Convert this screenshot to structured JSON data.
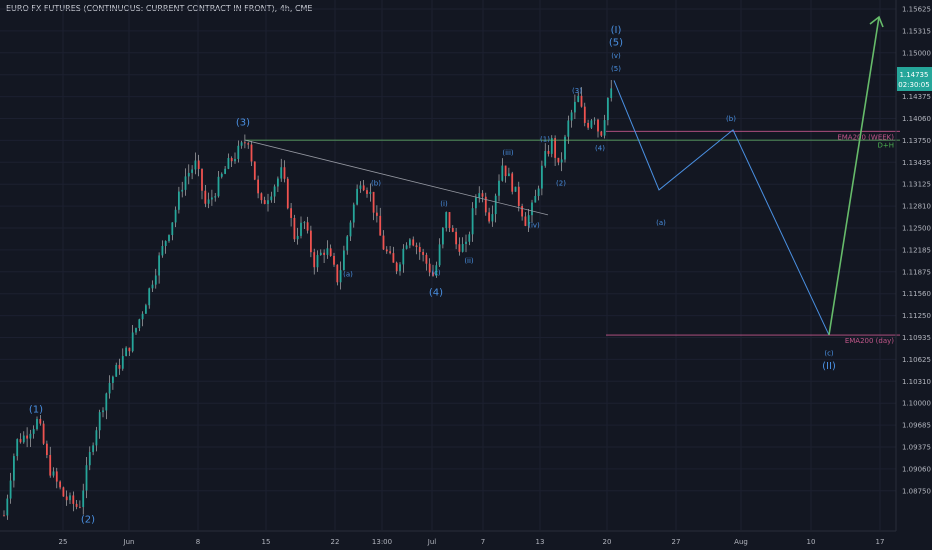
{
  "chart_data": {
    "type": "candlestick",
    "title": "EURO FX FUTURES (CONTINUOUS: CURRENT CONTRACT IN FRONT), 4h, CME",
    "y_ticks": [
      "1.15625",
      "1.15315",
      "1.15000",
      "1.14690",
      "1.14375",
      "1.14060",
      "1.13750",
      "1.13435",
      "1.13125",
      "1.12810",
      "1.12500",
      "1.12185",
      "1.11875",
      "1.11560",
      "1.11250",
      "1.10935",
      "1.10625",
      "1.10310",
      "1.10000",
      "1.09685",
      "1.09375",
      "1.09060",
      "1.08750"
    ],
    "x_ticks": [
      "25",
      "Jun",
      "8",
      "15",
      "22",
      "13:00",
      "Jul",
      "7",
      "13",
      "20",
      "27",
      "Aug",
      "10",
      "17"
    ],
    "price_label": "1.14735",
    "countdown_label": "02:30:05",
    "ylim": [
      1.086,
      1.1575
    ],
    "swing_points": [
      {
        "i": 0,
        "p": 1.088
      },
      {
        "i": 12,
        "p": 1.098
      },
      {
        "i": 20,
        "p": 1.0988
      },
      {
        "i": 34,
        "p": 1.101
      },
      {
        "i": 45,
        "p": 1.0945
      },
      {
        "i": 60,
        "p": 1.0905
      },
      {
        "i": 75,
        "p": 1.089
      },
      {
        "i": 90,
        "p": 1.099
      },
      {
        "i": 105,
        "p": 1.106
      },
      {
        "i": 125,
        "p": 1.111
      },
      {
        "i": 140,
        "p": 1.1165
      },
      {
        "i": 155,
        "p": 1.123
      },
      {
        "i": 170,
        "p": 1.129
      },
      {
        "i": 180,
        "p": 1.134
      },
      {
        "i": 192,
        "p": 1.136
      },
      {
        "i": 202,
        "p": 1.13
      },
      {
        "i": 210,
        "p": 1.132
      },
      {
        "i": 222,
        "p": 1.1355
      },
      {
        "i": 236,
        "p": 1.138
      },
      {
        "i": 244,
        "p": 1.1395
      },
      {
        "i": 256,
        "p": 1.13
      },
      {
        "i": 268,
        "p": 1.1325
      },
      {
        "i": 278,
        "p": 1.135
      },
      {
        "i": 290,
        "p": 1.126
      },
      {
        "i": 300,
        "p": 1.128
      },
      {
        "i": 310,
        "p": 1.1225
      },
      {
        "i": 322,
        "p": 1.1245
      },
      {
        "i": 334,
        "p": 1.12
      },
      {
        "i": 346,
        "p": 1.128
      },
      {
        "i": 356,
        "p": 1.134
      },
      {
        "i": 366,
        "p": 1.132
      },
      {
        "i": 378,
        "p": 1.125
      },
      {
        "i": 392,
        "p": 1.1215
      },
      {
        "i": 405,
        "p": 1.1265
      },
      {
        "i": 418,
        "p": 1.1235
      },
      {
        "i": 430,
        "p": 1.1205
      },
      {
        "i": 442,
        "p": 1.129
      },
      {
        "i": 452,
        "p": 1.125
      },
      {
        "i": 462,
        "p": 1.1245
      },
      {
        "i": 474,
        "p": 1.133
      },
      {
        "i": 486,
        "p": 1.1285
      },
      {
        "i": 498,
        "p": 1.136
      },
      {
        "i": 510,
        "p": 1.1325
      },
      {
        "i": 522,
        "p": 1.128
      },
      {
        "i": 530,
        "p": 1.1305
      },
      {
        "i": 540,
        "p": 1.1365
      },
      {
        "i": 548,
        "p": 1.139
      },
      {
        "i": 555,
        "p": 1.135
      },
      {
        "i": 565,
        "p": 1.142
      },
      {
        "i": 574,
        "p": 1.145
      },
      {
        "i": 582,
        "p": 1.141
      },
      {
        "i": 590,
        "p": 1.143
      },
      {
        "i": 596,
        "p": 1.1395
      },
      {
        "i": 604,
        "p": 1.145
      },
      {
        "i": 614,
        "p": 1.147
      }
    ],
    "lines": {
      "horizontal_green": {
        "p": 1.1392,
        "x_start": 245,
        "x_end": 900
      },
      "descending_trendline": [
        {
          "x": 245,
          "p": 1.1392
        },
        {
          "x": 548,
          "p": 1.129
        }
      ],
      "ema200_week": {
        "p": 1.1404,
        "x_start": 606,
        "x_end": 900,
        "label": "EMA200 (WEEK)",
        "label2": "D+H"
      },
      "ema200_day": {
        "p": 1.1126,
        "x_start": 606,
        "x_end": 900,
        "label": "EMA200 (day)"
      }
    },
    "projection_blue": [
      {
        "x": 614,
        "p": 1.14735
      },
      {
        "x": 659,
        "p": 1.1324
      },
      {
        "x": 733,
        "p": 1.1406
      },
      {
        "x": 829,
        "p": 1.1126
      }
    ],
    "projection_green": [
      {
        "x": 829,
        "p": 1.1126
      },
      {
        "x": 879,
        "p": 1.156
      }
    ],
    "wave_labels": [
      {
        "t": "(1)",
        "x": 36,
        "p": 1.102,
        "size": "lg"
      },
      {
        "t": "(2)",
        "x": 88,
        "p": 1.087,
        "size": "lg"
      },
      {
        "t": "(3)",
        "x": 243,
        "p": 1.1412,
        "size": "lg"
      },
      {
        "t": "(a)",
        "x": 348,
        "p": 1.1206,
        "size": "sm"
      },
      {
        "t": "(b)",
        "x": 376,
        "p": 1.133,
        "size": "sm"
      },
      {
        "t": "(c)",
        "x": 436,
        "p": 1.1208,
        "size": "sm"
      },
      {
        "t": "(4)",
        "x": 436,
        "p": 1.118,
        "size": "lg"
      },
      {
        "t": "(i)",
        "x": 444,
        "p": 1.1302,
        "size": "sm"
      },
      {
        "t": "(ii)",
        "x": 469,
        "p": 1.1224,
        "size": "sm"
      },
      {
        "t": "(iii)",
        "x": 508,
        "p": 1.1372,
        "size": "sm"
      },
      {
        "t": "(iv)",
        "x": 534,
        "p": 1.1273,
        "size": "sm"
      },
      {
        "t": "(1)",
        "x": 545,
        "p": 1.139,
        "size": "xs"
      },
      {
        "t": "(2)",
        "x": 561,
        "p": 1.133,
        "size": "xs"
      },
      {
        "t": "(3)",
        "x": 577,
        "p": 1.1456,
        "size": "xs"
      },
      {
        "t": "(4)",
        "x": 600,
        "p": 1.1378,
        "size": "xs"
      },
      {
        "t": "(5)",
        "x": 616,
        "p": 1.1486,
        "size": "xs"
      },
      {
        "t": "(v)",
        "x": 616,
        "p": 1.1504,
        "size": "sm"
      },
      {
        "t": "(5)",
        "x": 616,
        "p": 1.1521,
        "size": "lg"
      },
      {
        "t": "(I)",
        "x": 616,
        "p": 1.1538,
        "size": "lg"
      },
      {
        "t": "(a)",
        "x": 661,
        "p": 1.1276,
        "size": "sm"
      },
      {
        "t": "(b)",
        "x": 731,
        "p": 1.1418,
        "size": "sm"
      },
      {
        "t": "(c)",
        "x": 829,
        "p": 1.1098,
        "size": "sm"
      },
      {
        "t": "(II)",
        "x": 829,
        "p": 1.108,
        "size": "lg"
      }
    ]
  }
}
